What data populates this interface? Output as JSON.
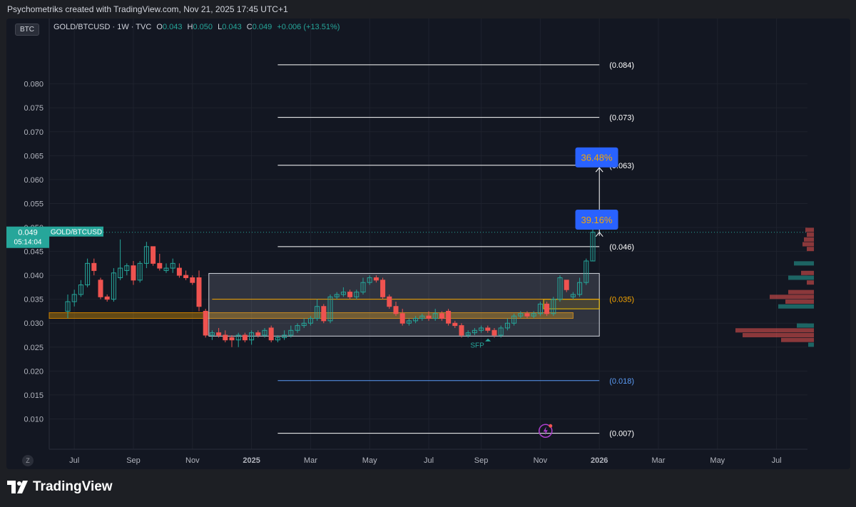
{
  "header": {
    "credit": "Psychometriks created with TradingView.com, Nov 21, 2025 17:45 UTC+1"
  },
  "legend": {
    "badge": "BTC",
    "symbol": "GOLD/BTCUSD · 1W · TVC",
    "o_label": "O",
    "o_value": "0.043",
    "h_label": "H",
    "h_value": "0.050",
    "l_label": "L",
    "l_value": "0.043",
    "c_label": "C",
    "c_value": "0.049",
    "change": "+0.006 (+13.51%)"
  },
  "footer": {
    "brand": "TradingView",
    "z_badge": "Z"
  },
  "colors": {
    "bg": "#131722",
    "up": "#26a69a",
    "down": "#ef5350",
    "grid": "#1e222d",
    "axis_text": "#b2b5be",
    "fib_blue": "#5b9cf6",
    "fib_orange": "#f7a600",
    "badge_blue": "#2962ff"
  },
  "chart_data": {
    "type": "candlestick",
    "symbol": "GOLD/BTCUSD",
    "interval": "1W",
    "ylim": [
      0.005,
      0.088
    ],
    "y_ticks": [
      "0.080",
      "0.075",
      "0.070",
      "0.065",
      "0.060",
      "0.055",
      "0.050",
      "0.045",
      "0.040",
      "0.035",
      "0.030",
      "0.025",
      "0.020",
      "0.015",
      "0.010"
    ],
    "y_tick_values": [
      0.08,
      0.075,
      0.07,
      0.065,
      0.06,
      0.055,
      0.05,
      0.045,
      0.04,
      0.035,
      0.03,
      0.025,
      0.02,
      0.015,
      0.01
    ],
    "x_ticks": [
      {
        "label": "Jul",
        "x": 1
      },
      {
        "label": "Sep",
        "x": 10
      },
      {
        "label": "Nov",
        "x": 19
      },
      {
        "label": "2025",
        "x": 28
      },
      {
        "label": "Mar",
        "x": 37
      },
      {
        "label": "May",
        "x": 46
      },
      {
        "label": "Jul",
        "x": 55
      },
      {
        "label": "Sep",
        "x": 63
      },
      {
        "label": "Nov",
        "x": 72
      },
      {
        "label": "2026",
        "x": 81
      },
      {
        "label": "Mar",
        "x": 90
      },
      {
        "label": "May",
        "x": 99
      },
      {
        "label": "Jul",
        "x": 108
      }
    ],
    "xlim": [
      -2.4,
      112.2
    ],
    "current_price": {
      "value": 0.049,
      "label": "0.049",
      "countdown": "05:14:04",
      "name": "GOLD/BTCUSD"
    },
    "candles": [
      {
        "o": 0.0325,
        "h": 0.036,
        "l": 0.031,
        "c": 0.0345
      },
      {
        "o": 0.0345,
        "h": 0.037,
        "l": 0.0335,
        "c": 0.036
      },
      {
        "o": 0.036,
        "h": 0.039,
        "l": 0.0355,
        "c": 0.038
      },
      {
        "o": 0.038,
        "h": 0.0435,
        "l": 0.0375,
        "c": 0.0425
      },
      {
        "o": 0.0425,
        "h": 0.0435,
        "l": 0.04,
        "c": 0.041
      },
      {
        "o": 0.039,
        "h": 0.0395,
        "l": 0.035,
        "c": 0.0355
      },
      {
        "o": 0.0355,
        "h": 0.036,
        "l": 0.0345,
        "c": 0.035
      },
      {
        "o": 0.035,
        "h": 0.0415,
        "l": 0.0345,
        "c": 0.0405
      },
      {
        "o": 0.0395,
        "h": 0.0475,
        "l": 0.039,
        "c": 0.0415
      },
      {
        "o": 0.041,
        "h": 0.0425,
        "l": 0.04,
        "c": 0.042
      },
      {
        "o": 0.042,
        "h": 0.043,
        "l": 0.038,
        "c": 0.039
      },
      {
        "o": 0.039,
        "h": 0.043,
        "l": 0.0385,
        "c": 0.0425
      },
      {
        "o": 0.0425,
        "h": 0.047,
        "l": 0.0415,
        "c": 0.046
      },
      {
        "o": 0.046,
        "h": 0.046,
        "l": 0.042,
        "c": 0.0425
      },
      {
        "o": 0.0425,
        "h": 0.0445,
        "l": 0.041,
        "c": 0.0415
      },
      {
        "o": 0.041,
        "h": 0.0425,
        "l": 0.0405,
        "c": 0.0415
      },
      {
        "o": 0.0415,
        "h": 0.0435,
        "l": 0.0405,
        "c": 0.0425
      },
      {
        "o": 0.0415,
        "h": 0.0425,
        "l": 0.0395,
        "c": 0.04
      },
      {
        "o": 0.04,
        "h": 0.041,
        "l": 0.039,
        "c": 0.0395
      },
      {
        "o": 0.0395,
        "h": 0.04,
        "l": 0.038,
        "c": 0.0385
      },
      {
        "o": 0.0395,
        "h": 0.041,
        "l": 0.0325,
        "c": 0.0335
      },
      {
        "o": 0.0325,
        "h": 0.033,
        "l": 0.027,
        "c": 0.0275
      },
      {
        "o": 0.0275,
        "h": 0.0285,
        "l": 0.0265,
        "c": 0.028
      },
      {
        "o": 0.028,
        "h": 0.029,
        "l": 0.027,
        "c": 0.0275
      },
      {
        "o": 0.0275,
        "h": 0.0285,
        "l": 0.026,
        "c": 0.0265
      },
      {
        "o": 0.027,
        "h": 0.0275,
        "l": 0.025,
        "c": 0.0265
      },
      {
        "o": 0.0265,
        "h": 0.028,
        "l": 0.025,
        "c": 0.0275
      },
      {
        "o": 0.0275,
        "h": 0.028,
        "l": 0.026,
        "c": 0.0265
      },
      {
        "o": 0.0265,
        "h": 0.0285,
        "l": 0.0255,
        "c": 0.028
      },
      {
        "o": 0.028,
        "h": 0.0285,
        "l": 0.027,
        "c": 0.0275
      },
      {
        "o": 0.0275,
        "h": 0.029,
        "l": 0.027,
        "c": 0.0285
      },
      {
        "o": 0.029,
        "h": 0.0295,
        "l": 0.026,
        "c": 0.0265
      },
      {
        "o": 0.0265,
        "h": 0.0275,
        "l": 0.026,
        "c": 0.027
      },
      {
        "o": 0.027,
        "h": 0.0285,
        "l": 0.0265,
        "c": 0.0275
      },
      {
        "o": 0.0275,
        "h": 0.0295,
        "l": 0.027,
        "c": 0.0285
      },
      {
        "o": 0.0285,
        "h": 0.03,
        "l": 0.028,
        "c": 0.0295
      },
      {
        "o": 0.0295,
        "h": 0.031,
        "l": 0.029,
        "c": 0.03
      },
      {
        "o": 0.03,
        "h": 0.0315,
        "l": 0.0295,
        "c": 0.031
      },
      {
        "o": 0.031,
        "h": 0.035,
        "l": 0.0305,
        "c": 0.0335
      },
      {
        "o": 0.0335,
        "h": 0.034,
        "l": 0.03,
        "c": 0.0305
      },
      {
        "o": 0.0305,
        "h": 0.036,
        "l": 0.03,
        "c": 0.0355
      },
      {
        "o": 0.0355,
        "h": 0.0365,
        "l": 0.035,
        "c": 0.036
      },
      {
        "o": 0.036,
        "h": 0.0375,
        "l": 0.0355,
        "c": 0.0365
      },
      {
        "o": 0.0365,
        "h": 0.037,
        "l": 0.035,
        "c": 0.0355
      },
      {
        "o": 0.0355,
        "h": 0.037,
        "l": 0.035,
        "c": 0.0365
      },
      {
        "o": 0.0365,
        "h": 0.0395,
        "l": 0.036,
        "c": 0.0385
      },
      {
        "o": 0.0385,
        "h": 0.04,
        "l": 0.038,
        "c": 0.0395
      },
      {
        "o": 0.0395,
        "h": 0.04,
        "l": 0.0385,
        "c": 0.039
      },
      {
        "o": 0.039,
        "h": 0.0395,
        "l": 0.035,
        "c": 0.0355
      },
      {
        "o": 0.0355,
        "h": 0.036,
        "l": 0.033,
        "c": 0.0335
      },
      {
        "o": 0.0335,
        "h": 0.0345,
        "l": 0.0315,
        "c": 0.032
      },
      {
        "o": 0.032,
        "h": 0.033,
        "l": 0.0295,
        "c": 0.03
      },
      {
        "o": 0.03,
        "h": 0.031,
        "l": 0.0295,
        "c": 0.0305
      },
      {
        "o": 0.0305,
        "h": 0.0315,
        "l": 0.03,
        "c": 0.031
      },
      {
        "o": 0.031,
        "h": 0.032,
        "l": 0.0305,
        "c": 0.0315
      },
      {
        "o": 0.0315,
        "h": 0.0325,
        "l": 0.0305,
        "c": 0.031
      },
      {
        "o": 0.031,
        "h": 0.033,
        "l": 0.0305,
        "c": 0.032
      },
      {
        "o": 0.032,
        "h": 0.0325,
        "l": 0.0305,
        "c": 0.031
      },
      {
        "o": 0.0325,
        "h": 0.033,
        "l": 0.0295,
        "c": 0.03
      },
      {
        "o": 0.03,
        "h": 0.0305,
        "l": 0.029,
        "c": 0.0295
      },
      {
        "o": 0.0295,
        "h": 0.03,
        "l": 0.027,
        "c": 0.0275
      },
      {
        "o": 0.0275,
        "h": 0.0285,
        "l": 0.027,
        "c": 0.028
      },
      {
        "o": 0.028,
        "h": 0.029,
        "l": 0.0275,
        "c": 0.0285
      },
      {
        "o": 0.0285,
        "h": 0.0295,
        "l": 0.028,
        "c": 0.029
      },
      {
        "o": 0.029,
        "h": 0.0295,
        "l": 0.028,
        "c": 0.0285
      },
      {
        "o": 0.0285,
        "h": 0.029,
        "l": 0.027,
        "c": 0.0275
      },
      {
        "o": 0.0275,
        "h": 0.0295,
        "l": 0.027,
        "c": 0.029
      },
      {
        "o": 0.029,
        "h": 0.031,
        "l": 0.0285,
        "c": 0.03
      },
      {
        "o": 0.03,
        "h": 0.032,
        "l": 0.0295,
        "c": 0.0315
      },
      {
        "o": 0.0315,
        "h": 0.0325,
        "l": 0.031,
        "c": 0.032
      },
      {
        "o": 0.032,
        "h": 0.0325,
        "l": 0.031,
        "c": 0.0315
      },
      {
        "o": 0.0315,
        "h": 0.0325,
        "l": 0.031,
        "c": 0.032
      },
      {
        "o": 0.032,
        "h": 0.0345,
        "l": 0.0315,
        "c": 0.034
      },
      {
        "o": 0.034,
        "h": 0.0345,
        "l": 0.0315,
        "c": 0.032
      },
      {
        "o": 0.032,
        "h": 0.0355,
        "l": 0.0315,
        "c": 0.035
      },
      {
        "o": 0.035,
        "h": 0.04,
        "l": 0.0345,
        "c": 0.0395
      },
      {
        "o": 0.039,
        "h": 0.039,
        "l": 0.0365,
        "c": 0.037
      },
      {
        "o": 0.0355,
        "h": 0.0365,
        "l": 0.035,
        "c": 0.036
      },
      {
        "o": 0.036,
        "h": 0.0395,
        "l": 0.0355,
        "c": 0.0385
      },
      {
        "o": 0.0385,
        "h": 0.0435,
        "l": 0.038,
        "c": 0.043
      },
      {
        "o": 0.043,
        "h": 0.05,
        "l": 0.043,
        "c": 0.049
      }
    ],
    "fib_levels": [
      {
        "value": 0.084,
        "label": "(0.084)",
        "color": "#ffffff",
        "x0": 32,
        "x1": 81
      },
      {
        "value": 0.073,
        "label": "(0.073)",
        "color": "#ffffff",
        "x0": 32,
        "x1": 81
      },
      {
        "value": 0.063,
        "label": "(0.063)",
        "color": "#ffffff",
        "x0": 32,
        "x1": 81
      },
      {
        "value": 0.046,
        "label": "(0.046)",
        "color": "#ffffff",
        "x0": 32,
        "x1": 81
      },
      {
        "value": 0.035,
        "label": "(0.035)",
        "color": "#f7a600",
        "x0": 22,
        "x1": 81
      },
      {
        "value": 0.018,
        "label": "(0.018)",
        "color": "#5b9cf6",
        "x0": 32,
        "x1": 81
      },
      {
        "value": 0.007,
        "label": "(0.007)",
        "color": "#ffffff",
        "x0": 32,
        "x1": 81
      }
    ],
    "range_box": {
      "x0": 21.5,
      "x1": 81,
      "y0": 0.0273,
      "y1": 0.0404
    },
    "support_zone": {
      "x0": -2.4,
      "x1": 77,
      "y0": 0.031,
      "y1": 0.0322
    },
    "yellow_box": {
      "x0": 72.5,
      "x1": 81,
      "y0": 0.033,
      "y1": 0.035
    },
    "measure": {
      "x": 81,
      "from": 0.049,
      "to": 0.0625
    },
    "badges": [
      {
        "label": "36.48%",
        "x": 80.6,
        "y": 0.0645
      },
      {
        "label": "39.16%",
        "x": 80.6,
        "y": 0.0515
      }
    ],
    "annotations": [
      {
        "text": "SFP",
        "x": 62.4,
        "y": 0.0255,
        "color": "#26a69a"
      }
    ],
    "volume_profile": [
      {
        "price": 0.0495,
        "width": 12,
        "color": "#ef5350"
      },
      {
        "price": 0.0485,
        "width": 10,
        "color": "#ef5350"
      },
      {
        "price": 0.0475,
        "width": 14,
        "color": "#ef5350"
      },
      {
        "price": 0.0465,
        "width": 16,
        "color": "#ef5350"
      },
      {
        "price": 0.0455,
        "width": 10,
        "color": "#ef5350"
      },
      {
        "price": 0.0425,
        "width": 28,
        "color": "#26a69a"
      },
      {
        "price": 0.0405,
        "width": 18,
        "color": "#ef5350"
      },
      {
        "price": 0.0395,
        "width": 36,
        "color": "#26a69a"
      },
      {
        "price": 0.0385,
        "width": 10,
        "color": "#ef5350"
      },
      {
        "price": 0.0365,
        "width": 36,
        "color": "#ef5350"
      },
      {
        "price": 0.0355,
        "width": 62,
        "color": "#ef5350"
      },
      {
        "price": 0.0345,
        "width": 40,
        "color": "#ef5350"
      },
      {
        "price": 0.0335,
        "width": 50,
        "color": "#26a69a"
      },
      {
        "price": 0.0295,
        "width": 24,
        "color": "#26a69a"
      },
      {
        "price": 0.0285,
        "width": 110,
        "color": "#ef5350"
      },
      {
        "price": 0.0275,
        "width": 100,
        "color": "#ef5350"
      },
      {
        "price": 0.0265,
        "width": 46,
        "color": "#ef5350"
      },
      {
        "price": 0.0255,
        "width": 8,
        "color": "#26a69a"
      }
    ]
  }
}
